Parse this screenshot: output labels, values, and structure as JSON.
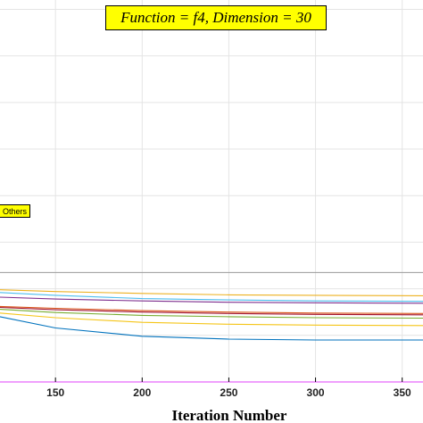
{
  "chart_data": {
    "type": "line",
    "title": "Function = f4, Dimension = 30",
    "xlabel": "Iteration Number",
    "ylabel": "",
    "xlim": [
      118,
      362
    ],
    "ylim": [
      0,
      8.2
    ],
    "x_ticks": [
      150,
      200,
      250,
      300,
      350
    ],
    "grid": true,
    "legend": {
      "visible_entries": [
        "Others"
      ],
      "placement": "left"
    },
    "x": [
      118,
      150,
      200,
      250,
      300,
      362
    ],
    "series": [
      {
        "color": "#0072BD",
        "values": [
          1.4,
          1.16,
          0.98,
          0.92,
          0.9,
          0.9
        ]
      },
      {
        "color": "#EDB120",
        "values": [
          1.98,
          1.94,
          1.9,
          1.87,
          1.86,
          1.85
        ]
      },
      {
        "color": "#4DBEEE",
        "values": [
          1.92,
          1.86,
          1.79,
          1.76,
          1.74,
          1.73
        ]
      },
      {
        "color": "#7E2F8E",
        "values": [
          1.82,
          1.78,
          1.74,
          1.71,
          1.7,
          1.69
        ]
      },
      {
        "color": "#D95319",
        "values": [
          1.62,
          1.58,
          1.53,
          1.5,
          1.48,
          1.47
        ]
      },
      {
        "color": "#A2142F",
        "values": [
          1.6,
          1.55,
          1.5,
          1.47,
          1.45,
          1.44
        ]
      },
      {
        "color": "#77AC30",
        "values": [
          1.56,
          1.49,
          1.43,
          1.4,
          1.38,
          1.37
        ]
      },
      {
        "color": "#F5C518",
        "values": [
          1.48,
          1.38,
          1.28,
          1.24,
          1.22,
          1.21
        ]
      },
      {
        "color": "#E040FB",
        "values": [
          0.0,
          0.0,
          0.0,
          0.0,
          0.0,
          0.0
        ]
      }
    ]
  }
}
